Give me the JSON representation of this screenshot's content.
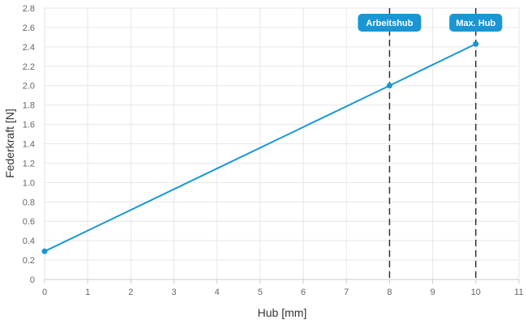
{
  "chart_data": {
    "type": "line",
    "xlabel": "Hub [mm]",
    "ylabel": "Federkraft [N]",
    "xlim": [
      0,
      11
    ],
    "ylim": [
      0,
      2.8
    ],
    "x_ticks": [
      "0",
      "1",
      "2",
      "3",
      "4",
      "5",
      "6",
      "7",
      "8",
      "9",
      "10",
      "11"
    ],
    "y_ticks": [
      "0",
      "0.2",
      "0.4",
      "0.6",
      "0.8",
      "1.0",
      "1.2",
      "1.4",
      "1.6",
      "1.8",
      "2.0",
      "2.2",
      "2.4",
      "2.6",
      "2.8"
    ],
    "grid": true,
    "series": [
      {
        "color": "#1a96d4",
        "x": [
          0,
          8,
          10
        ],
        "y": [
          0.29,
          2.0,
          2.43
        ]
      }
    ],
    "annotations": [
      {
        "label": "Arbeitshub",
        "x": 8
      },
      {
        "label": "Max. Hub",
        "x": 10
      }
    ],
    "colors": {
      "line": "#1a96d4",
      "annotation_bg": "#1a96d4",
      "grid": "#e6e6e6",
      "dash_line": "#333333"
    }
  }
}
